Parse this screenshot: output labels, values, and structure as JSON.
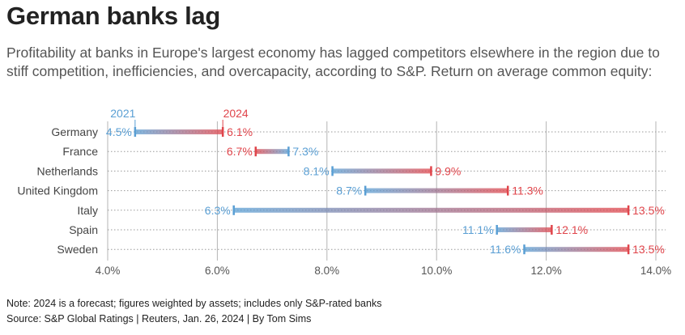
{
  "header": {
    "title": "German banks lag",
    "subtitle": "Profitability at banks in Europe's largest economy has lagged competitors elsewhere in the region due to stiff competition, inefficiencies, and overcapacity, according to S&P. Return on average common equity:"
  },
  "chart_data": {
    "type": "dumbbell",
    "legend": {
      "start_label": "2021",
      "end_label": "2024"
    },
    "colors": {
      "start": "#5a9fd4",
      "end": "#e0454b",
      "grid": "#aaaaaa",
      "label": "#444444"
    },
    "xlim": [
      4.0,
      14.0
    ],
    "x_ticks": [
      {
        "value": 4,
        "label": "4.0%"
      },
      {
        "value": 6,
        "label": "6.0%"
      },
      {
        "value": 8,
        "label": "8.0%"
      },
      {
        "value": 10,
        "label": "10.0%"
      },
      {
        "value": 12,
        "label": "12.0%"
      },
      {
        "value": 14,
        "label": "14.0%"
      }
    ],
    "rows": [
      {
        "country": "Germany",
        "start": 4.5,
        "start_label": "4.5%",
        "end": 6.1,
        "end_label": "6.1%"
      },
      {
        "country": "France",
        "start": 7.3,
        "start_label": "7.3%",
        "end": 6.7,
        "end_label": "6.7%"
      },
      {
        "country": "Netherlands",
        "start": 8.1,
        "start_label": "8.1%",
        "end": 9.9,
        "end_label": "9.9%"
      },
      {
        "country": "United Kingdom",
        "start": 8.7,
        "start_label": "8.7%",
        "end": 11.3,
        "end_label": "11.3%"
      },
      {
        "country": "Italy",
        "start": 6.3,
        "start_label": "6.3%",
        "end": 13.5,
        "end_label": "13.5%"
      },
      {
        "country": "Spain",
        "start": 11.1,
        "start_label": "11.1%",
        "end": 12.1,
        "end_label": "12.1%"
      },
      {
        "country": "Sweden",
        "start": 11.6,
        "start_label": "11.6%",
        "end": 13.5,
        "end_label": "13.5%"
      }
    ]
  },
  "footer": {
    "note": "Note: 2024 is a forecast; figures weighted by assets; includes only S&P-rated banks",
    "source": "Source: S&P Global Ratings | Reuters, Jan. 26, 2024 | By Tom Sims"
  }
}
